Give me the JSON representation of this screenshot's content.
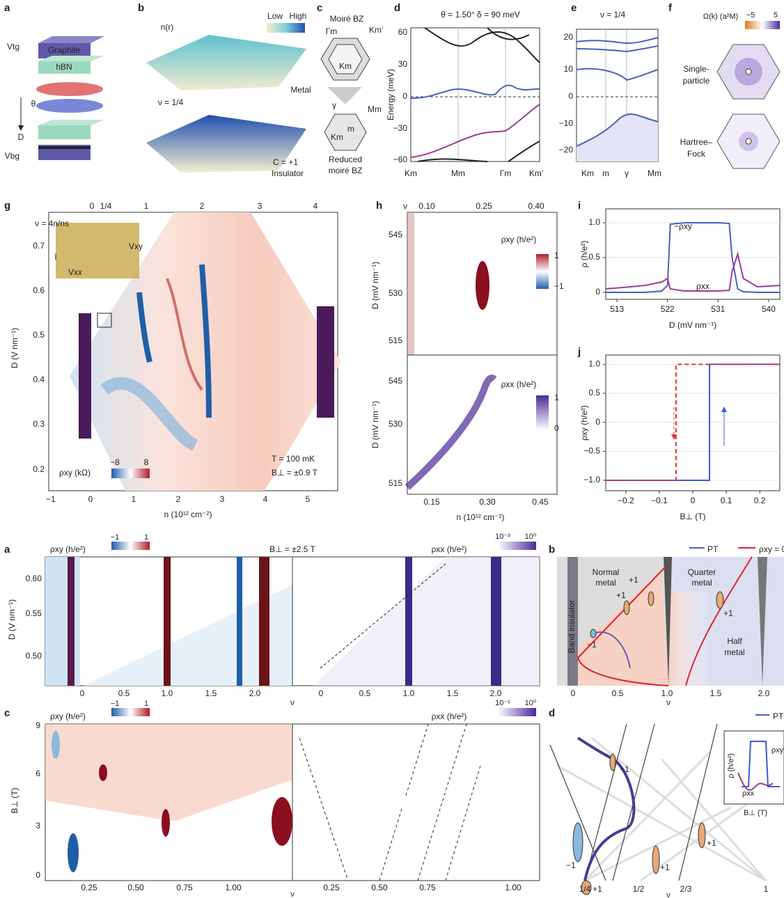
{
  "a_top": {
    "label": "a",
    "graphite": "Graphite",
    "hbn": "hBN",
    "vtg": "Vtg",
    "vbg": "Vbg",
    "theta": "θ",
    "d": "D"
  },
  "b_top": {
    "label": "b",
    "n": "n(r)",
    "low": "Low",
    "high": "High",
    "metal": "Metal",
    "nu": "ν = 1/4",
    "chern": "C = +1",
    "insulator": "Insulator"
  },
  "c_top": {
    "label": "c",
    "title": "Moiré BZ",
    "gamma_m": "Γm",
    "k_m_prime": "Km'",
    "k_m": "Km",
    "m_m": "Mm",
    "gamma": "γ",
    "k_m2": "Km",
    "m": "m",
    "reduced": "Reduced",
    "reduced_bz": "moiré BZ"
  },
  "d_top": {
    "label": "d",
    "title": "θ = 1.50°   δ = 90 meV",
    "ylabel": "Energy (meV)",
    "yticks": [
      "60",
      "30",
      "0",
      "−30",
      "−60"
    ],
    "xticks": [
      "Km",
      "Mm",
      "Γm",
      "Km'"
    ]
  },
  "e_top": {
    "label": "e",
    "title": "ν = 1/4",
    "yticks": [
      "20",
      "10",
      "0",
      "−10",
      "−20"
    ],
    "xticks": [
      "Km",
      "m",
      "γ",
      "Mm"
    ]
  },
  "f_top": {
    "label": "f",
    "colorbar_label": "Ω(k) (a²M)",
    "colorbar_ticks": [
      "−5",
      "5"
    ],
    "single": "Single-",
    "particle": "particle",
    "hartree": "Hartree–",
    "fock": "Fock"
  },
  "g": {
    "label": "g",
    "top_axis_label": "ν = 4n/ns",
    "top_ticks": [
      "0",
      "1/4",
      "1",
      "2",
      "3",
      "4"
    ],
    "yticks": [
      "0.7",
      "0.6",
      "0.5",
      "0.4",
      "0.3",
      "0.2"
    ],
    "ylabel": "D (V nm⁻¹)",
    "xticks": [
      "−1",
      "0",
      "1",
      "2",
      "3",
      "4",
      "5"
    ],
    "xlabel": "n (10¹² cm⁻²)",
    "vxy": "Vxy",
    "vxx": "Vxx",
    "current": "I",
    "colorbar_label": "ρxy (kΩ)",
    "colorbar_ticks": [
      "−8",
      "8"
    ],
    "temperature": "T = 100 mK",
    "field": "B⊥ = ±0.9 T"
  },
  "h": {
    "label": "h",
    "top_axis_label": "ν",
    "top_ticks": [
      "0.10",
      "0.25",
      "0.40"
    ],
    "top_yticks": [
      "545",
      "530",
      "515"
    ],
    "bottom_yticks": [
      "545",
      "530",
      "515"
    ],
    "ylabel": "D (mV nm⁻¹)",
    "rho_xy_label": "ρxy (h/e²)",
    "rho_xy_ticks": [
      "1",
      "−1"
    ],
    "rho_xx_label": "ρxx (h/e²)",
    "rho_xx_ticks": [
      "1",
      "0"
    ],
    "xticks": [
      "0.15",
      "0.30",
      "0.45"
    ],
    "xlabel": "n (10¹² cm⁻²)"
  },
  "a_bottom": {
    "label": "a",
    "rho_xy_label": "ρxy (h/e²)",
    "rho_xy_ticks": [
      "−1",
      "1"
    ],
    "field": "B⊥ = ±2.5 T",
    "rho_xx_label": "ρxx (h/e²)",
    "rho_xx_ticks": [
      "10⁻³",
      "10⁰"
    ],
    "yticks": [
      "0.60",
      "0.55",
      "0.50"
    ],
    "ylabel": "D (V nm⁻¹)",
    "xticks_left": [
      "0",
      "0.5",
      "1.0",
      "1.5",
      "2.0"
    ],
    "xticks_right": [
      "0",
      "0.5",
      "1.0",
      "1.5",
      "2.0"
    ],
    "xlabel": "ν"
  },
  "b_bottom": {
    "label": "b",
    "legend": [
      "PT",
      "ρxy = 0"
    ],
    "band_insulator": "Band insulator",
    "normal": "Normal",
    "normal_metal": "metal",
    "quarter": "Quarter",
    "quarter_metal": "metal",
    "half": "Half",
    "half_metal": "metal",
    "chern_labels": [
      "+1",
      "+1",
      "+1",
      "−1"
    ],
    "xticks": [
      "0",
      "0.5",
      "1.0",
      "1.5",
      "2.0"
    ],
    "xlabel": "ν"
  },
  "c_bottom": {
    "label": "c",
    "rho_xy_label": "ρxy (h/e²)",
    "rho_xy_ticks": [
      "−1",
      "1"
    ],
    "rho_xx_label": "ρxx (h/e²)",
    "rho_xx_ticks": [
      "10⁻¹",
      "10⁰"
    ],
    "yticks": [
      "9",
      "6",
      "3",
      "0"
    ],
    "ylabel": "B⊥ (T)",
    "xticks_left": [
      "0.25",
      "0.50",
      "0.75",
      "1.00"
    ],
    "xticks_right": [
      "0.25",
      "0.50",
      "0.75",
      "1.00"
    ],
    "xlabel": "ν"
  },
  "d_bottom": {
    "label": "d",
    "legend": "PT",
    "inset_ylabel": "ρ (h/e²)",
    "inset_rho_xy": "ρxy",
    "inset_rho_xx": "ρxx",
    "inset_xlabel": "B⊥ (T)",
    "chern_labels": [
      "+1",
      "−1",
      "+1",
      "+1",
      "+1"
    ],
    "xticks": [
      "1/4",
      "1/2",
      "2/3",
      "1"
    ],
    "xlabel": "ν"
  },
  "chart_data": [
    {
      "type": "line",
      "label": "i",
      "ylabel": "ρ (h/e²)",
      "xlabel": "D (mV nm⁻¹)",
      "xlim": [
        511,
        542
      ],
      "ylim": [
        -0.1,
        1.2
      ],
      "xticks": [
        513,
        522,
        531,
        540
      ],
      "yticks": [
        0,
        0.5,
        {
          "value": 1,
          "label": "1.0"
        }
      ],
      "series": [
        {
          "name": "−ρxy",
          "color": "#4a5fc1",
          "x": [
            511,
            514,
            518,
            521,
            522,
            522.5,
            525,
            528,
            531,
            533,
            533.5,
            534.5,
            535.5,
            538,
            542
          ],
          "values": [
            0,
            0,
            0,
            0.02,
            0.1,
            0.98,
            1,
            1,
            1,
            0.99,
            0.5,
            0.05,
            0.01,
            0,
            0
          ]
        },
        {
          "name": "ρxx",
          "color": "#9b3a9e",
          "x": [
            511,
            514,
            518,
            521,
            522,
            522.5,
            525,
            528,
            531,
            533,
            533.5,
            534.5,
            535.5,
            538,
            542
          ],
          "values": [
            0.05,
            0.07,
            0.1,
            0.15,
            0.2,
            0.05,
            0.02,
            0.02,
            0.02,
            0.03,
            0.3,
            0.55,
            0.2,
            0.08,
            0.1
          ]
        }
      ]
    },
    {
      "type": "line",
      "label": "j",
      "ylabel": "ρxy (h/e²)",
      "xlabel": "B⊥ (T)",
      "xlim": [
        -0.26,
        0.26
      ],
      "ylim": [
        -1.18,
        1.16
      ],
      "xticks": [
        {
          "value": -0.2,
          "label": "−0.2"
        },
        {
          "value": -0.1,
          "label": "−0.1"
        },
        0,
        0.1,
        0.2
      ],
      "yticks": [
        {
          "value": -1,
          "label": "−1.0"
        },
        {
          "value": -0.5,
          "label": "−0.5"
        },
        0,
        0.5,
        {
          "value": 1,
          "label": "1.0"
        }
      ],
      "series": [
        {
          "color": "#3a5bd0",
          "x": [
            -0.26,
            0.05,
            0.05,
            0.26
          ],
          "values": [
            -1,
            -1,
            1,
            1
          ]
        },
        {
          "color": "#e8303a",
          "dash": true,
          "x": [
            -0.26,
            -0.05,
            -0.05,
            0.26
          ],
          "values": [
            -1,
            -1,
            1,
            1
          ]
        }
      ]
    }
  ]
}
